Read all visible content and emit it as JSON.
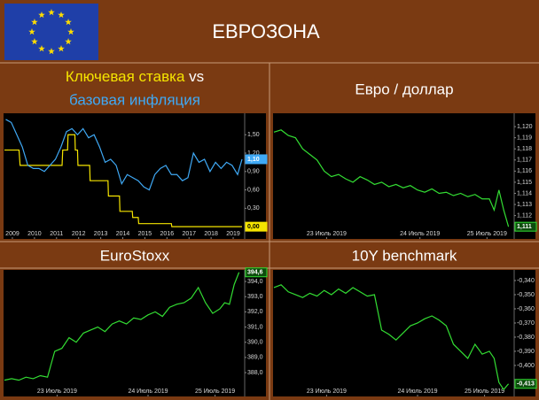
{
  "header": {
    "title": "ЕВРОЗОНА"
  },
  "chart_data": [
    {
      "type": "line",
      "title_parts": [
        {
          "text": "Ключевая ставка",
          "color": "#f5e400"
        },
        {
          "text": "vs",
          "color": "#ffffff"
        },
        {
          "text": "базовая инфляция",
          "color": "#3fa9f5"
        }
      ],
      "xlim": [
        2008.64,
        2019.48
      ],
      "xticks": [
        2009,
        2010,
        2011,
        2012,
        2013,
        2014,
        2015,
        2016,
        2017,
        2018,
        2019
      ],
      "ylim": [
        -0.2,
        1.85
      ],
      "yticks": [
        {
          "value": 1.5,
          "label": "1,50"
        },
        {
          "value": 1.2,
          "label": "1,20"
        },
        {
          "value": 0.9,
          "label": "0,90"
        },
        {
          "value": 0.6,
          "label": "0,60"
        },
        {
          "value": 0.3,
          "label": "0,30"
        }
      ],
      "series": [
        {
          "name": "Ключевая ставка",
          "color": "#f5e400",
          "last_label": {
            "value": 0,
            "label": "0,00"
          },
          "x": [
            2008.64,
            2009.3,
            2009.35,
            2011.25,
            2011.28,
            2011.5,
            2011.52,
            2011.83,
            2011.85,
            2011.95,
            2011.97,
            2012.5,
            2012.52,
            2013.33,
            2013.35,
            2013.85,
            2013.87,
            2014.43,
            2014.45,
            2014.7,
            2014.72,
            2016.2,
            2016.22,
            2019.4
          ],
          "values": [
            1.25,
            1.25,
            1.0,
            1.0,
            1.25,
            1.25,
            1.5,
            1.5,
            1.25,
            1.25,
            1.0,
            1.0,
            0.75,
            0.75,
            0.5,
            0.5,
            0.25,
            0.25,
            0.15,
            0.15,
            0.05,
            0.05,
            0,
            0
          ]
        },
        {
          "name": "базовая инфляция",
          "color": "#3fa9f5",
          "last_label": {
            "value": 1.1,
            "label": "1,10"
          },
          "x": [
            2008.7,
            2008.95,
            2009.2,
            2009.45,
            2009.7,
            2009.95,
            2010.2,
            2010.45,
            2010.7,
            2010.95,
            2011.2,
            2011.45,
            2011.7,
            2011.95,
            2012.2,
            2012.45,
            2012.7,
            2012.95,
            2013.2,
            2013.45,
            2013.7,
            2013.95,
            2014.2,
            2014.45,
            2014.7,
            2014.95,
            2015.2,
            2015.45,
            2015.7,
            2015.95,
            2016.2,
            2016.45,
            2016.7,
            2016.95,
            2017.2,
            2017.45,
            2017.7,
            2017.95,
            2018.2,
            2018.45,
            2018.7,
            2018.95,
            2019.2,
            2019.4
          ],
          "values": [
            1.75,
            1.7,
            1.5,
            1.3,
            1.0,
            0.95,
            0.95,
            0.9,
            1.0,
            1.1,
            1.3,
            1.55,
            1.6,
            1.5,
            1.6,
            1.45,
            1.5,
            1.3,
            1.05,
            1.1,
            1.0,
            0.7,
            0.85,
            0.8,
            0.75,
            0.65,
            0.6,
            0.85,
            0.95,
            1.0,
            0.85,
            0.85,
            0.75,
            0.8,
            1.2,
            1.05,
            1.1,
            0.9,
            1.05,
            0.95,
            1.05,
            1.0,
            0.85,
            1.1
          ]
        }
      ]
    },
    {
      "type": "line",
      "title": "Евро / доллар",
      "xlim": [
        0,
        100
      ],
      "xticks": [
        {
          "value": 22,
          "label": "23 Июль 2019"
        },
        {
          "value": 61,
          "label": "24 Июль 2019"
        },
        {
          "value": 89,
          "label": "25 Июль 2019"
        }
      ],
      "ylim": [
        1.1099,
        1.1212
      ],
      "yticks": [
        {
          "value": 1.12,
          "label": "1,120"
        },
        {
          "value": 1.119,
          "label": "1,119"
        },
        {
          "value": 1.118,
          "label": "1,118"
        },
        {
          "value": 1.117,
          "label": "1,117"
        },
        {
          "value": 1.116,
          "label": "1,116"
        },
        {
          "value": 1.115,
          "label": "1,115"
        },
        {
          "value": 1.114,
          "label": "1,114"
        },
        {
          "value": 1.113,
          "label": "1,113"
        },
        {
          "value": 1.112,
          "label": "1,112"
        }
      ],
      "x": [
        0,
        3,
        6,
        9,
        12,
        15,
        18,
        21,
        24,
        27,
        30,
        33,
        36,
        39,
        42,
        45,
        48,
        51,
        54,
        57,
        60,
        63,
        66,
        69,
        72,
        75,
        78,
        81,
        84,
        87,
        90,
        92,
        94,
        96,
        98
      ],
      "series": [
        {
          "color": "#33dd33",
          "last_label": {
            "value": 1.111,
            "label": "1,111"
          },
          "values": [
            1.1195,
            1.1197,
            1.1192,
            1.119,
            1.118,
            1.1175,
            1.117,
            1.116,
            1.1155,
            1.1157,
            1.1153,
            1.115,
            1.1155,
            1.1152,
            1.1148,
            1.115,
            1.1146,
            1.1148,
            1.1145,
            1.1147,
            1.1143,
            1.1141,
            1.1144,
            1.114,
            1.1141,
            1.1138,
            1.114,
            1.1137,
            1.1139,
            1.1135,
            1.1135,
            1.1125,
            1.1143,
            1.1125,
            1.111
          ]
        }
      ]
    },
    {
      "type": "line",
      "title": "EuroStoxx",
      "xlim": [
        0,
        100
      ],
      "xticks": [
        {
          "value": 22,
          "label": "23 Июль 2019"
        },
        {
          "value": 60,
          "label": "24 Июль 2019"
        },
        {
          "value": 88,
          "label": "25 Июль 2019"
        }
      ],
      "ylim": [
        386.43,
        394.76
      ],
      "yticks": [
        {
          "value": 394,
          "label": "394,0"
        },
        {
          "value": 393,
          "label": "393,0"
        },
        {
          "value": 392,
          "label": "392,0"
        },
        {
          "value": 391,
          "label": "391,0"
        },
        {
          "value": 390,
          "label": "390,0"
        },
        {
          "value": 389,
          "label": "389,0"
        },
        {
          "value": 388,
          "label": "388,0"
        }
      ],
      "x": [
        0,
        3,
        6,
        9,
        12,
        15,
        18,
        21,
        24,
        27,
        30,
        33,
        36,
        39,
        42,
        45,
        48,
        51,
        54,
        57,
        60,
        63,
        66,
        69,
        72,
        75,
        78,
        81,
        84,
        87,
        90,
        92,
        94,
        96,
        98
      ],
      "series": [
        {
          "color": "#33dd33",
          "last_label": {
            "value": 394.6,
            "label": "394,6"
          },
          "values": [
            387.5,
            387.6,
            387.5,
            387.7,
            387.6,
            387.8,
            387.7,
            389.4,
            389.6,
            390.3,
            390.0,
            390.6,
            390.8,
            391.0,
            390.7,
            391.2,
            391.4,
            391.2,
            391.6,
            391.5,
            391.8,
            392.0,
            391.7,
            392.3,
            392.5,
            392.6,
            392.9,
            393.6,
            392.6,
            391.9,
            392.2,
            392.6,
            392.5,
            393.8,
            394.6
          ]
        }
      ]
    },
    {
      "type": "line",
      "title": "10Y benchmark",
      "xlim": [
        0,
        100
      ],
      "xticks": [
        {
          "value": 22,
          "label": "23 Июль 2019"
        },
        {
          "value": 60,
          "label": "24 Июль 2019"
        },
        {
          "value": 88,
          "label": "25 Июль 2019"
        }
      ],
      "ylim": [
        -0.4219,
        -0.3325
      ],
      "yticks": [
        {
          "value": -0.34,
          "label": "-0,340"
        },
        {
          "value": -0.35,
          "label": "-0,350"
        },
        {
          "value": -0.36,
          "label": "-0,360"
        },
        {
          "value": -0.37,
          "label": "-0,370"
        },
        {
          "value": -0.38,
          "label": "-0,380"
        },
        {
          "value": -0.39,
          "label": "-0,390"
        },
        {
          "value": -0.4,
          "label": "-0,400"
        }
      ],
      "x": [
        0,
        3,
        6,
        9,
        12,
        15,
        18,
        21,
        24,
        27,
        30,
        33,
        36,
        39,
        42,
        45,
        48,
        51,
        54,
        57,
        60,
        63,
        66,
        69,
        72,
        75,
        78,
        81,
        84,
        87,
        90,
        92,
        94,
        96,
        98
      ],
      "series": [
        {
          "color": "#33dd33",
          "last_label": {
            "value": -0.413,
            "label": "-0,413"
          },
          "values": [
            -0.345,
            -0.343,
            -0.348,
            -0.35,
            -0.352,
            -0.349,
            -0.351,
            -0.347,
            -0.35,
            -0.346,
            -0.349,
            -0.345,
            -0.348,
            -0.351,
            -0.35,
            -0.375,
            -0.378,
            -0.382,
            -0.377,
            -0.372,
            -0.37,
            -0.367,
            -0.365,
            -0.368,
            -0.372,
            -0.385,
            -0.39,
            -0.395,
            -0.385,
            -0.392,
            -0.39,
            -0.395,
            -0.412,
            -0.417,
            -0.413
          ]
        }
      ]
    }
  ]
}
